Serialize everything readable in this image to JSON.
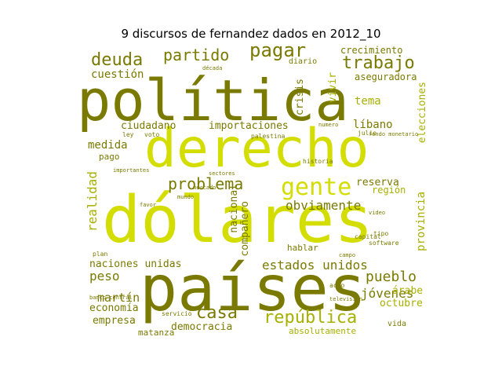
{
  "title": "9 discursos de fernandez dados en 2012_10",
  "colors": {
    "dark": "#7a7a00",
    "bright": "#d4dd00",
    "mid": "#a8b000"
  },
  "words": {
    "politica": "política",
    "derecho": "derecho",
    "dolares": "dólares",
    "paises": "países",
    "deuda": "deuda",
    "partido": "partido",
    "pagar": "pagar",
    "trabajo": "trabajo",
    "crecimiento": "crecimiento",
    "cuestion": "cuestión",
    "gente": "gente",
    "problema": "problema",
    "obviamente": "obviamente",
    "realidad": "realidad",
    "medida": "medida",
    "ciudadano": "ciudadano",
    "importaciones": "importaciones",
    "libano": "líbano",
    "reserva": "reserva",
    "region": "región",
    "nacional": "nacional",
    "companero": "compañero",
    "provincia": "provincia",
    "elecciones": "elecciones",
    "vivir": "vivir",
    "tema": "tema",
    "crisis": "crisis",
    "aseguradora": "aseguradora",
    "naciones_unidas": "naciones unidas",
    "estados_unidos": "estados unidos",
    "peso": "peso",
    "pueblo": "pueblo",
    "martin": "martín",
    "economia": "economía",
    "casa": "casa",
    "republica": "república",
    "jovenes": "jóvenes",
    "octubre": "octubre",
    "empresa": "empresa",
    "democracia": "democracia",
    "matanza": "matanza",
    "absolutamente": "absolutamente",
    "arabe": "árabe",
    "hablar": "hablar",
    "pago": "pago",
    "diario": "diario",
    "vida": "vida",
    "software": "software",
    "capital": "capital",
    "palestina": "palestina",
    "historia": "historia",
    "voto": "voto",
    "julio": "julio",
    "fondo_monetario": "fondo monetario",
    "television": "televisión",
    "servicio": "servicio",
    "sectores": "sectores",
    "mercado": "mercado",
    "importantes": "importantes",
    "plan": "plan",
    "favor": "favor",
    "acto": "acto",
    "ley": "ley",
    "tipo": "tipo",
    "numero": "numero",
    "decada": "década",
    "banco_central": "banco central",
    "campo": "campo",
    "mundo": "mundo",
    "video": "video"
  }
}
